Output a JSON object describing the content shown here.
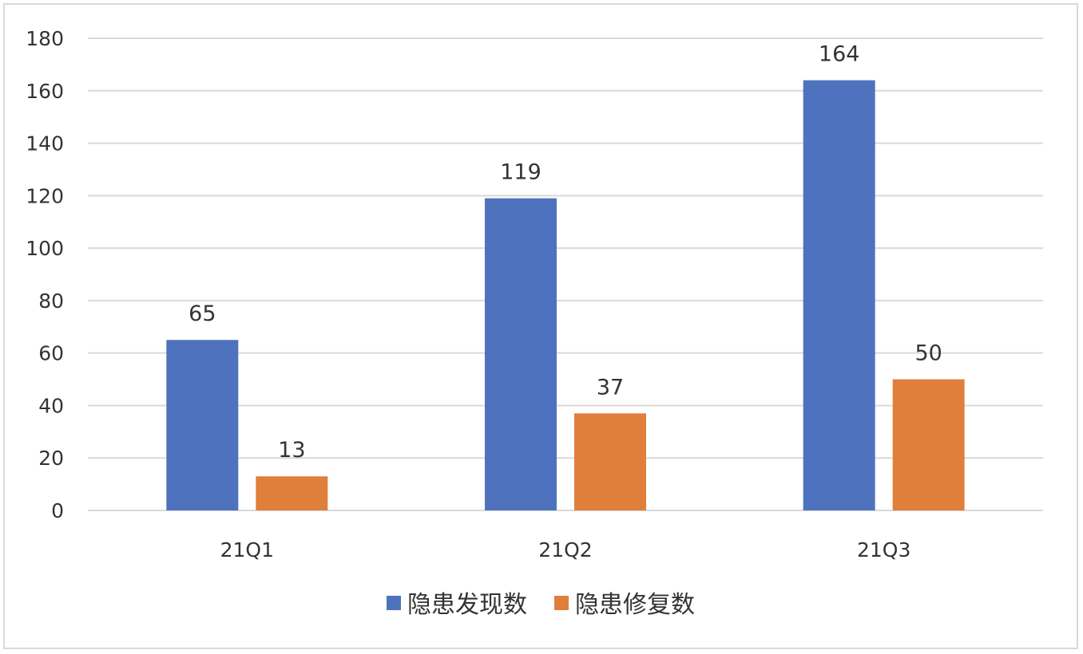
{
  "chart_data": {
    "type": "bar",
    "categories": [
      "21Q1",
      "21Q2",
      "21Q3"
    ],
    "series": [
      {
        "name": "隐患发现数",
        "values": [
          65,
          119,
          164
        ],
        "color": "#4f72be"
      },
      {
        "name": "隐患修复数",
        "values": [
          13,
          37,
          50
        ],
        "color": "#e07f3c"
      }
    ],
    "title": "",
    "xlabel": "",
    "ylabel": "",
    "ylim": [
      0,
      180
    ],
    "yticks": [
      0,
      20,
      40,
      60,
      80,
      100,
      120,
      140,
      160,
      180
    ],
    "grid": true,
    "gridline_color": "#d9d9d9",
    "legend_position": "bottom"
  }
}
